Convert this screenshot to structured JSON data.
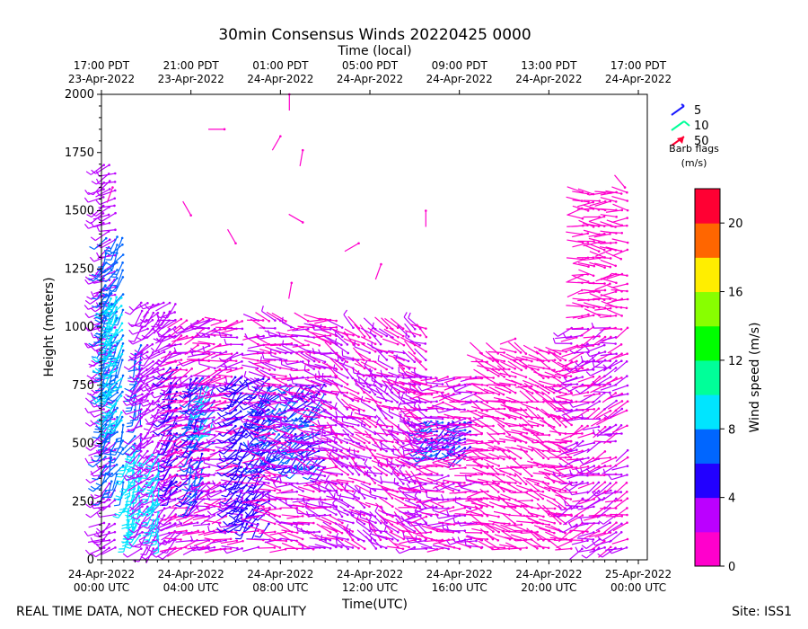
{
  "chart_data": {
    "type": "wind-barb",
    "title": "30min Consensus Winds 20220425 0000",
    "top_axis_title": "Time (local)",
    "xlabel": "Time(UTC)",
    "ylabel": "Height (meters)",
    "ylim": [
      0,
      2000
    ],
    "xlim_hours": [
      0,
      24.4
    ],
    "y_ticks": [
      0,
      250,
      500,
      750,
      1000,
      1250,
      1500,
      1750,
      2000
    ],
    "x_ticks": [
      {
        "h": 0,
        "line1": "24-Apr-2022",
        "line2": "00:00 UTC"
      },
      {
        "h": 4,
        "line1": "24-Apr-2022",
        "line2": "04:00 UTC"
      },
      {
        "h": 8,
        "line1": "24-Apr-2022",
        "line2": "08:00 UTC"
      },
      {
        "h": 12,
        "line1": "24-Apr-2022",
        "line2": "12:00 UTC"
      },
      {
        "h": 16,
        "line1": "24-Apr-2022",
        "line2": "16:00 UTC"
      },
      {
        "h": 20,
        "line1": "24-Apr-2022",
        "line2": "20:00 UTC"
      },
      {
        "h": 24,
        "line1": "25-Apr-2022",
        "line2": "00:00 UTC"
      }
    ],
    "top_ticks": [
      {
        "h": 0,
        "line1": "17:00 PDT",
        "line2": "23-Apr-2022"
      },
      {
        "h": 4,
        "line1": "21:00 PDT",
        "line2": "23-Apr-2022"
      },
      {
        "h": 8,
        "line1": "01:00 PDT",
        "line2": "24-Apr-2022"
      },
      {
        "h": 12,
        "line1": "05:00 PDT",
        "line2": "24-Apr-2022"
      },
      {
        "h": 16,
        "line1": "09:00 PDT",
        "line2": "24-Apr-2022"
      },
      {
        "h": 20,
        "line1": "13:00 PDT",
        "line2": "24-Apr-2022"
      },
      {
        "h": 24,
        "line1": "17:00 PDT",
        "line2": "24-Apr-2022"
      }
    ],
    "barb_legend": {
      "entries": [
        {
          "label": "5",
          "color": "#1a1aff"
        },
        {
          "label": "10",
          "color": "#00ff99"
        },
        {
          "label": "50",
          "color": "#ff0033"
        }
      ],
      "title_line1": "Barb flags",
      "title_line2": "(m/s)"
    },
    "colorbar": {
      "label": "Wind speed (m/s)",
      "min": 0,
      "max": 22,
      "colors": [
        "#ff00cc",
        "#bb00ff",
        "#2200ff",
        "#0066ff",
        "#00e5ff",
        "#00ff99",
        "#00ff00",
        "#88ff00",
        "#ffee00",
        "#ff6600",
        "#ff0033"
      ],
      "ticks": [
        0,
        4,
        8,
        12,
        16,
        20
      ]
    },
    "regions": [
      {
        "h0": 0.1,
        "h1": 0.6,
        "z0": 50,
        "z1": 1700,
        "speed": 3,
        "dir": 240
      },
      {
        "h0": 0.2,
        "h1": 1.0,
        "z0": 300,
        "z1": 1400,
        "speed": 7,
        "dir": 210
      },
      {
        "h0": 0.4,
        "h1": 0.9,
        "z0": 600,
        "z1": 1150,
        "speed": 9,
        "dir": 220
      },
      {
        "h0": 1.2,
        "h1": 1.8,
        "z0": 100,
        "z1": 500,
        "speed": 9,
        "dir": 200
      },
      {
        "h0": 1.5,
        "h1": 1.8,
        "z0": 500,
        "z1": 950,
        "speed": 7,
        "dir": 205
      },
      {
        "h0": 1.8,
        "h1": 3.3,
        "z0": 50,
        "z1": 1100,
        "speed": 3,
        "dir": 230
      },
      {
        "h0": 2.3,
        "h1": 2.7,
        "z0": 100,
        "z1": 450,
        "speed": 9,
        "dir": 200
      },
      {
        "h0": 3.1,
        "h1": 3.5,
        "z0": 300,
        "z1": 850,
        "speed": 5,
        "dir": 215
      },
      {
        "h0": 3.3,
        "h1": 4.8,
        "z0": 50,
        "z1": 1050,
        "speed": 2,
        "dir": 250
      },
      {
        "h0": 4.0,
        "h1": 4.6,
        "z0": 250,
        "z1": 800,
        "speed": 6,
        "dir": 210
      },
      {
        "h0": 4.5,
        "h1": 5.0,
        "z0": 500,
        "z1": 780,
        "speed": 8,
        "dir": 215
      },
      {
        "h0": 4.8,
        "h1": 6.5,
        "z0": 50,
        "z1": 1050,
        "speed": 2,
        "dir": 260
      },
      {
        "h0": 6.0,
        "h1": 7.5,
        "z0": 150,
        "z1": 800,
        "speed": 5,
        "dir": 225
      },
      {
        "h0": 7.2,
        "h1": 10.0,
        "z0": 400,
        "z1": 780,
        "speed": 6,
        "dir": 235
      },
      {
        "h0": 7.0,
        "h1": 10.5,
        "z0": 50,
        "z1": 1050,
        "speed": 2,
        "dir": 280
      },
      {
        "h0": 10.5,
        "h1": 14.5,
        "z0": 50,
        "z1": 1000,
        "speed": 2,
        "dir": 300
      },
      {
        "h0": 14.5,
        "h1": 16.5,
        "z0": 450,
        "z1": 620,
        "speed": 6,
        "dir": 240
      },
      {
        "h0": 14.0,
        "h1": 17.0,
        "z0": 50,
        "z1": 800,
        "speed": 2,
        "dir": 270
      },
      {
        "h0": 17.0,
        "h1": 21.0,
        "z0": 50,
        "z1": 900,
        "speed": 1,
        "dir": 290
      },
      {
        "h0": 21.0,
        "h1": 23.5,
        "z0": 50,
        "z1": 1000,
        "speed": 2,
        "dir": 250
      },
      {
        "h0": 21.5,
        "h1": 23.5,
        "z0": 1050,
        "z1": 1580,
        "speed": 1,
        "dir": 270
      }
    ],
    "sparse_points": [
      {
        "h": 5.5,
        "z": 1850,
        "speed": 1,
        "dir": 270
      },
      {
        "h": 8.0,
        "z": 1820,
        "speed": 1,
        "dir": 210
      },
      {
        "h": 8.4,
        "z": 2000,
        "speed": 1,
        "dir": 180
      },
      {
        "h": 9.0,
        "z": 1760,
        "speed": 1,
        "dir": 190
      },
      {
        "h": 9.0,
        "z": 1450,
        "speed": 1,
        "dir": 300
      },
      {
        "h": 4.0,
        "z": 1480,
        "speed": 1,
        "dir": 330
      },
      {
        "h": 6.0,
        "z": 1360,
        "speed": 1,
        "dir": 330
      },
      {
        "h": 8.5,
        "z": 1190,
        "speed": 1,
        "dir": 190
      },
      {
        "h": 11.5,
        "z": 1360,
        "speed": 1,
        "dir": 240
      },
      {
        "h": 12.5,
        "z": 1270,
        "speed": 1,
        "dir": 200
      },
      {
        "h": 14.5,
        "z": 1500,
        "speed": 1,
        "dir": 180
      },
      {
        "h": 0.5,
        "z": 1600,
        "speed": 1,
        "dir": 200
      },
      {
        "h": 23.4,
        "z": 1600,
        "speed": 1,
        "dir": 320
      },
      {
        "h": 18.5,
        "z": 950,
        "speed": 1,
        "dir": 250
      }
    ]
  },
  "footer": {
    "left": "REAL TIME DATA, NOT CHECKED FOR QUALITY",
    "right": "Site: ISS1"
  }
}
